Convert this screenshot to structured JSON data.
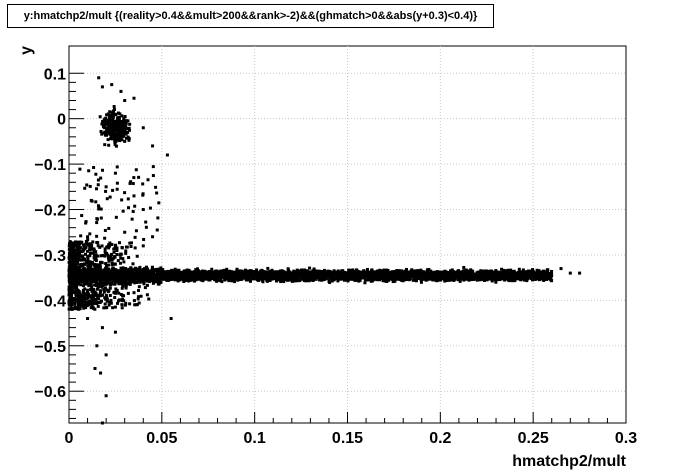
{
  "chart_data": {
    "type": "scatter",
    "title": "y:hmatchp2/mult {(reality>0.4&&mult>200&&rank>-2)&&(ghmatch>0&&abs(y+0.3)<0.4)}",
    "xlabel": "hmatchp2/mult",
    "ylabel": "y",
    "xlim": [
      0,
      0.3
    ],
    "ylim": [
      -0.67,
      0.16
    ],
    "xticks": [
      0,
      0.05,
      0.1,
      0.15,
      0.2,
      0.25,
      0.3
    ],
    "xtick_labels": [
      "0",
      "0.05",
      "0.1",
      "0.15",
      "0.2",
      "0.25",
      "0.3"
    ],
    "yticks": [
      0.1,
      0,
      -0.1,
      -0.2,
      -0.3,
      -0.4,
      -0.5,
      -0.6
    ],
    "ytick_labels": [
      "0.1",
      "0",
      "−0.1",
      "−0.2",
      "−0.3",
      "−0.4",
      "−0.5",
      "−0.6"
    ],
    "grid": true,
    "series": [
      {
        "marker_color": "#000000",
        "band": {
          "x": [
            0.0,
            0.26
          ],
          "y_center": -0.345,
          "y_spread": 0.012
        },
        "low_x_spread": {
          "x": [
            0.0,
            0.045
          ],
          "y": [
            -0.42,
            -0.27
          ]
        },
        "upper_cluster": {
          "x_center": 0.025,
          "y_center": -0.02,
          "x_spread": 0.008,
          "y_spread": 0.04
        },
        "scattered_points": [
          [
            0.016,
            0.09
          ],
          [
            0.018,
            0.07
          ],
          [
            0.023,
            0.075
          ],
          [
            0.028,
            0.06
          ],
          [
            0.03,
            0.04
          ],
          [
            0.035,
            0.045
          ],
          [
            0.03,
            -0.05
          ],
          [
            0.04,
            -0.02
          ],
          [
            0.045,
            -0.06
          ],
          [
            0.053,
            -0.08
          ],
          [
            0.02,
            -0.15
          ],
          [
            0.025,
            -0.12
          ],
          [
            0.035,
            -0.17
          ],
          [
            0.04,
            -0.2
          ],
          [
            0.03,
            -0.25
          ],
          [
            0.015,
            -0.22
          ],
          [
            0.01,
            -0.26
          ],
          [
            0.04,
            -0.28
          ],
          [
            0.045,
            -0.26
          ],
          [
            0.012,
            -0.18
          ],
          [
            0.055,
            -0.44
          ],
          [
            0.018,
            -0.46
          ],
          [
            0.02,
            -0.52
          ],
          [
            0.015,
            -0.5
          ],
          [
            0.025,
            -0.47
          ],
          [
            0.01,
            -0.44
          ],
          [
            0.017,
            -0.56
          ],
          [
            0.014,
            -0.55
          ],
          [
            0.02,
            -0.61
          ],
          [
            0.018,
            -0.67
          ],
          [
            0.265,
            -0.33
          ],
          [
            0.27,
            -0.34
          ],
          [
            0.275,
            -0.34
          ],
          [
            0.258,
            -0.35
          ]
        ]
      }
    ]
  }
}
